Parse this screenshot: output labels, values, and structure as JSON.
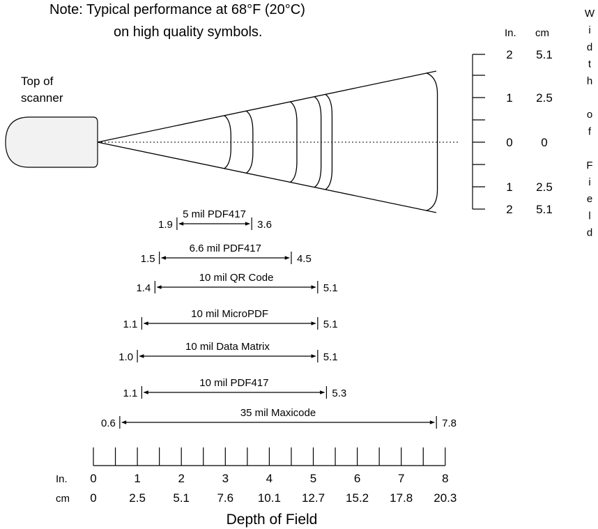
{
  "note": {
    "line1": "Note:  Typical performance at 68°F (20°C)",
    "line2": "on high quality symbols."
  },
  "scanner_label": {
    "line1": "Top of",
    "line2": "scanner"
  },
  "width_axis": {
    "unit_in": "In.",
    "unit_cm": "cm",
    "title_letters": [
      "W",
      "i",
      "d",
      "t",
      "h",
      "",
      "o",
      "f",
      "",
      "F",
      "i",
      "e",
      "l",
      "d"
    ],
    "ticks": [
      {
        "in": "2",
        "cm": "5.1"
      },
      {
        "in": "1",
        "cm": "2.5"
      },
      {
        "in": "0",
        "cm": "0"
      },
      {
        "in": "1",
        "cm": "2.5"
      },
      {
        "in": "2",
        "cm": "5.1"
      }
    ]
  },
  "symbols": [
    {
      "name": "5 mil PDF417",
      "near": 1.9,
      "far": 3.6,
      "near_label": "1.9",
      "far_label": "3.6"
    },
    {
      "name": "6.6 mil PDF417",
      "near": 1.5,
      "far": 4.5,
      "near_label": "1.5",
      "far_label": "4.5"
    },
    {
      "name": "10 mil QR Code",
      "near": 1.4,
      "far": 5.1,
      "near_label": "1.4",
      "far_label": "5.1"
    },
    {
      "name": "10 mil MicroPDF",
      "near": 1.1,
      "far": 5.1,
      "near_label": "1.1",
      "far_label": "5.1"
    },
    {
      "name": "10 mil Data Matrix",
      "near": 1.0,
      "far": 5.1,
      "near_label": "1.0",
      "far_label": "5.1"
    },
    {
      "name": "10 mil PDF417",
      "near": 1.1,
      "far": 5.3,
      "near_label": "1.1",
      "far_label": "5.3"
    },
    {
      "name": "35 mil Maxicode",
      "near": 0.6,
      "far": 7.8,
      "near_label": "0.6",
      "far_label": "7.8"
    }
  ],
  "depth_axis": {
    "unit_in": "In.",
    "unit_cm": "cm",
    "inches": [
      "0",
      "1",
      "2",
      "3",
      "4",
      "5",
      "6",
      "7",
      "8"
    ],
    "cm": [
      "0",
      "2.5",
      "5.1",
      "7.6",
      "10.1",
      "12.7",
      "15.2",
      "17.8",
      "20.3"
    ],
    "title": "Depth of Field"
  },
  "field_arcs_in": [
    3.0,
    3.5,
    4.5,
    5.05,
    5.3,
    7.6
  ]
}
